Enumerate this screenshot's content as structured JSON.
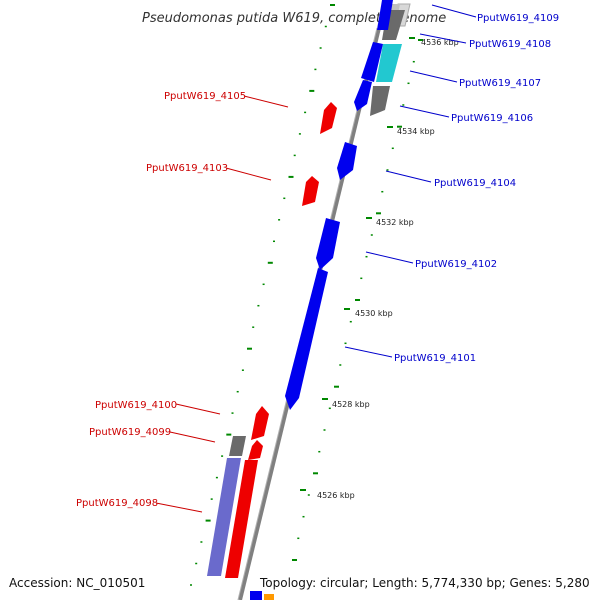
{
  "title": "Pseudomonas putida W619, complete genome",
  "footer": {
    "accession": "Accession: NC_010501",
    "info": "Topology: circular; Length: 5,774,330 bp; Genes: 5,280"
  },
  "colors": {
    "backbone": "#808080",
    "forward_gene": "#0000ee",
    "reverse_gene": "#ee0000",
    "other_gene": "#6666cc",
    "tick": "#008800",
    "label_forward": "#0000cc",
    "label_reverse": "#cc0000"
  },
  "kbp_ticks": [
    "4536 kbp",
    "4534 kbp",
    "4532 kbp",
    "4530 kbp",
    "4528 kbp",
    "4526 kbp"
  ],
  "genes_forward": [
    {
      "label": "PputW619_4109"
    },
    {
      "label": "PputW619_4108"
    },
    {
      "label": "PputW619_4107"
    },
    {
      "label": "PputW619_4106"
    },
    {
      "label": "PputW619_4104"
    },
    {
      "label": "PputW619_4102"
    },
    {
      "label": "PputW619_4101"
    }
  ],
  "genes_reverse": [
    {
      "label": "PputW619_4105"
    },
    {
      "label": "PputW619_4103"
    },
    {
      "label": "PputW619_4100"
    },
    {
      "label": "PputW619_4099"
    },
    {
      "label": "PputW619_4098"
    }
  ]
}
